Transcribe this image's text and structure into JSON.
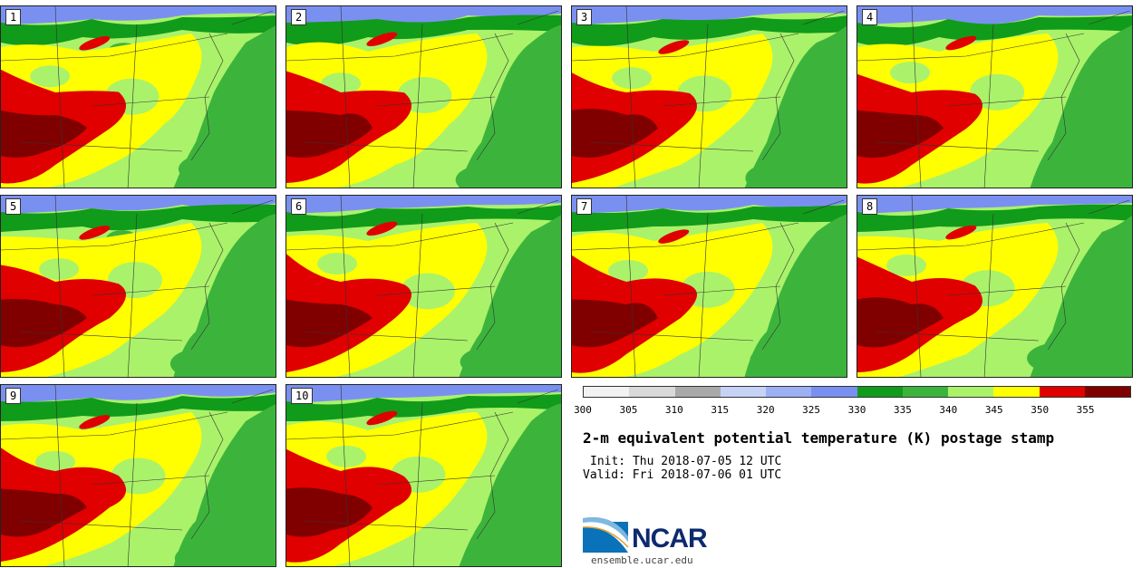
{
  "members": [
    "1",
    "2",
    "3",
    "4",
    "5",
    "6",
    "7",
    "8",
    "9",
    "10"
  ],
  "colorbar": {
    "ticks": [
      "300",
      "305",
      "310",
      "315",
      "320",
      "325",
      "330",
      "335",
      "340",
      "345",
      "350",
      "355"
    ],
    "colors": [
      "#f2f2f2",
      "#d9d9d9",
      "#a9a9a9",
      "#c6d3f7",
      "#9bb0f5",
      "#7a90f0",
      "#119b1a",
      "#3cb43c",
      "#aaf26a",
      "#ffff00",
      "#e00000",
      "#800000"
    ]
  },
  "map_colors": {
    "cool": "#7a90f0",
    "dark_green": "#119b1a",
    "green": "#3cb43c",
    "light_green": "#aaf26a",
    "yellow": "#ffff00",
    "red": "#e00000",
    "dark_red": "#800000"
  },
  "title": "2-m equivalent potential temperature (K) postage stamp",
  "init_line": "Init: Thu 2018-07-05 12 UTC",
  "valid_line": "Valid: Fri 2018-07-06 01 UTC",
  "logo": {
    "text": "NCAR",
    "url_text": "ensemble.ucar.edu"
  }
}
